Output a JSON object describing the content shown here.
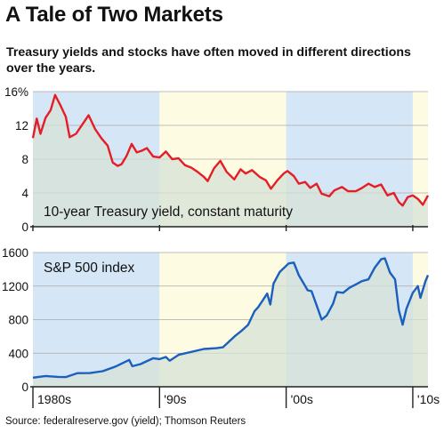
{
  "title": "A Tale of Two Markets",
  "subtitle": "Treasury yields and stocks have often moved in different directions over the years.",
  "source": "Source: federalreserve.gov (yield); Thomson Reuters",
  "colors": {
    "band_blue": "#d5e6f6",
    "band_yellow": "#fdfbe1",
    "area_under": "#d6e2d6",
    "yield_line": "#e41e26",
    "sp500_line": "#1b5fbf",
    "axis": "#222222"
  },
  "chart_data": [
    {
      "type": "line",
      "series_label": "10-year Treasury yield, constant maturity",
      "unit_suffix": "%",
      "ylim": [
        0,
        16
      ],
      "xlim": [
        1980,
        2011.2
      ],
      "yticks": [
        0,
        4,
        8,
        12,
        16
      ],
      "ytick_labels": [
        "0",
        "4",
        "8",
        "12",
        "16%"
      ],
      "grid": true,
      "series": [
        {
          "x": [
            1980.0,
            1980.3,
            1980.6,
            1981.0,
            1981.4,
            1981.75,
            1982.2,
            1982.6,
            1982.9,
            1983.4,
            1983.9,
            1984.4,
            1984.9,
            1985.4,
            1985.9,
            1986.3,
            1986.7,
            1987.0,
            1987.4,
            1987.8,
            1988.2,
            1988.6,
            1989.0,
            1989.5,
            1990.0,
            1990.5,
            1991.0,
            1991.5,
            1992.0,
            1992.5,
            1993.0,
            1993.5,
            1993.8,
            1994.3,
            1994.8,
            1995.3,
            1995.9,
            1996.4,
            1996.8,
            1997.3,
            1997.9,
            1998.4,
            1998.8,
            1999.3,
            1999.8,
            2000.1,
            2000.6,
            2001.0,
            2001.5,
            2001.9,
            2002.4,
            2002.8,
            2003.4,
            2003.8,
            2004.4,
            2004.9,
            2005.5,
            2006.0,
            2006.5,
            2007.0,
            2007.5,
            2008.0,
            2008.5,
            2008.9,
            2009.2,
            2009.6,
            2010.0,
            2010.4,
            2010.8,
            2011.2
          ],
          "values": [
            10.5,
            12.8,
            11.0,
            12.9,
            13.8,
            15.6,
            14.3,
            13.0,
            10.6,
            11.0,
            12.1,
            13.2,
            11.6,
            10.5,
            9.6,
            7.6,
            7.2,
            7.4,
            8.4,
            9.8,
            8.8,
            9.0,
            9.3,
            8.3,
            8.2,
            8.9,
            8.0,
            8.1,
            7.3,
            7.0,
            6.5,
            5.9,
            5.4,
            6.9,
            7.8,
            6.5,
            5.6,
            6.8,
            6.3,
            6.7,
            5.9,
            5.5,
            4.5,
            5.5,
            6.3,
            6.6,
            6.0,
            5.1,
            5.3,
            4.6,
            5.1,
            3.9,
            3.6,
            4.3,
            4.7,
            4.2,
            4.2,
            4.6,
            5.1,
            4.7,
            5.0,
            3.7,
            4.0,
            2.9,
            2.5,
            3.5,
            3.7,
            3.3,
            2.6,
            3.7
          ]
        }
      ]
    },
    {
      "type": "line",
      "series_label": "S&P 500 index",
      "ylim": [
        0,
        1600
      ],
      "xlim": [
        1980,
        2011.2
      ],
      "yticks": [
        0,
        400,
        800,
        1200,
        1600
      ],
      "ytick_labels": [
        "0",
        "400",
        "800",
        "1200",
        "1600"
      ],
      "xtick_labels": [
        "1980s",
        "'90s",
        "'00s",
        "'10s"
      ],
      "decade_boundaries": [
        1980,
        1990,
        2000,
        2010
      ],
      "grid": true,
      "series": [
        {
          "x": [
            1980.0,
            1981.0,
            1982.0,
            1982.6,
            1983.5,
            1984.5,
            1985.5,
            1986.5,
            1987.6,
            1987.85,
            1988.5,
            1989.5,
            1990.0,
            1990.5,
            1990.8,
            1991.5,
            1992.5,
            1993.5,
            1994.5,
            1995.0,
            1995.5,
            1996.0,
            1996.5,
            1997.0,
            1997.5,
            1997.8,
            1998.5,
            1998.75,
            1999.0,
            1999.5,
            2000.2,
            2000.6,
            2001.0,
            2001.7,
            2002.0,
            2002.5,
            2002.8,
            2003.2,
            2003.7,
            2004.0,
            2004.5,
            2005.0,
            2005.5,
            2006.0,
            2006.5,
            2007.0,
            2007.5,
            2007.8,
            2008.2,
            2008.6,
            2008.9,
            2009.2,
            2009.5,
            2010.0,
            2010.4,
            2010.6,
            2011.0,
            2011.2
          ],
          "values": [
            108,
            128,
            118,
            115,
            162,
            163,
            185,
            240,
            320,
            245,
            270,
            340,
            330,
            355,
            310,
            380,
            415,
            450,
            460,
            470,
            540,
            610,
            670,
            740,
            900,
            950,
            1110,
            980,
            1230,
            1370,
            1470,
            1480,
            1330,
            1150,
            1140,
            930,
            800,
            850,
            990,
            1130,
            1120,
            1180,
            1220,
            1260,
            1280,
            1420,
            1520,
            1530,
            1360,
            1280,
            910,
            740,
            930,
            1120,
            1200,
            1060,
            1260,
            1330
          ]
        }
      ]
    }
  ]
}
